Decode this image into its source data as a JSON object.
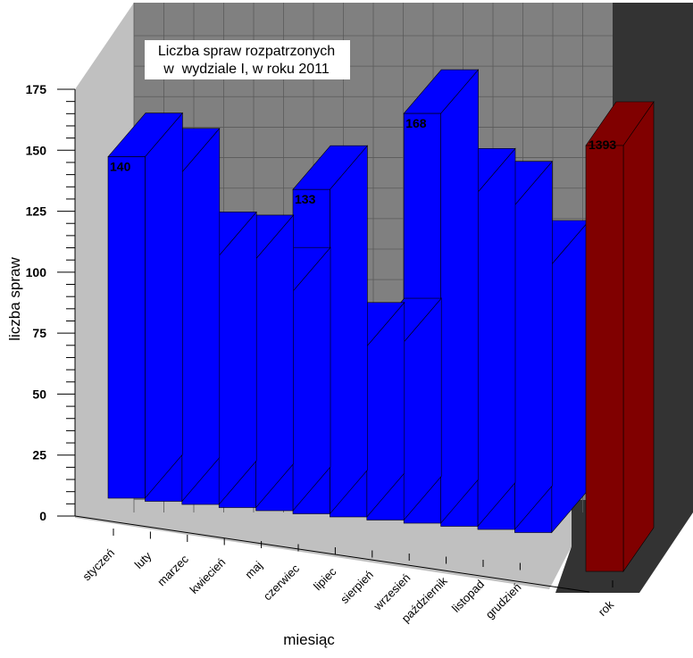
{
  "chart_data": {
    "type": "bar",
    "title_lines": [
      "Liczba spraw rozpatrzonych",
      "w  wydziale I, w roku 2011"
    ],
    "xlabel": "miesiąc",
    "ylabel": "liczba spraw",
    "ylim": [
      0,
      175
    ],
    "yticks": [
      "0",
      "25",
      "50",
      "75",
      "100",
      "125",
      "150",
      "175"
    ],
    "categories": [
      "styczeń",
      "luty",
      "marzec",
      "kwiecień",
      "maj",
      "czerwiec",
      "lipiec",
      "sierpień",
      "wrzesień",
      "październik",
      "listopad",
      "grudzień"
    ],
    "values": [
      140,
      135,
      102,
      102,
      90,
      133,
      70,
      73,
      168,
      137,
      133,
      110
    ],
    "value_labels": [
      "140",
      "135",
      "102",
      "102",
      "90",
      "133",
      "70",
      "73",
      "168",
      "137",
      "133",
      "110"
    ],
    "total_category": "rok",
    "total_value": 1393,
    "total_label": "1393",
    "colors": {
      "monthly_bars": "#0000ff",
      "total_bar": "#800000",
      "back_wall": "#808080",
      "floor": "#c0c0c0"
    },
    "grid": true
  }
}
